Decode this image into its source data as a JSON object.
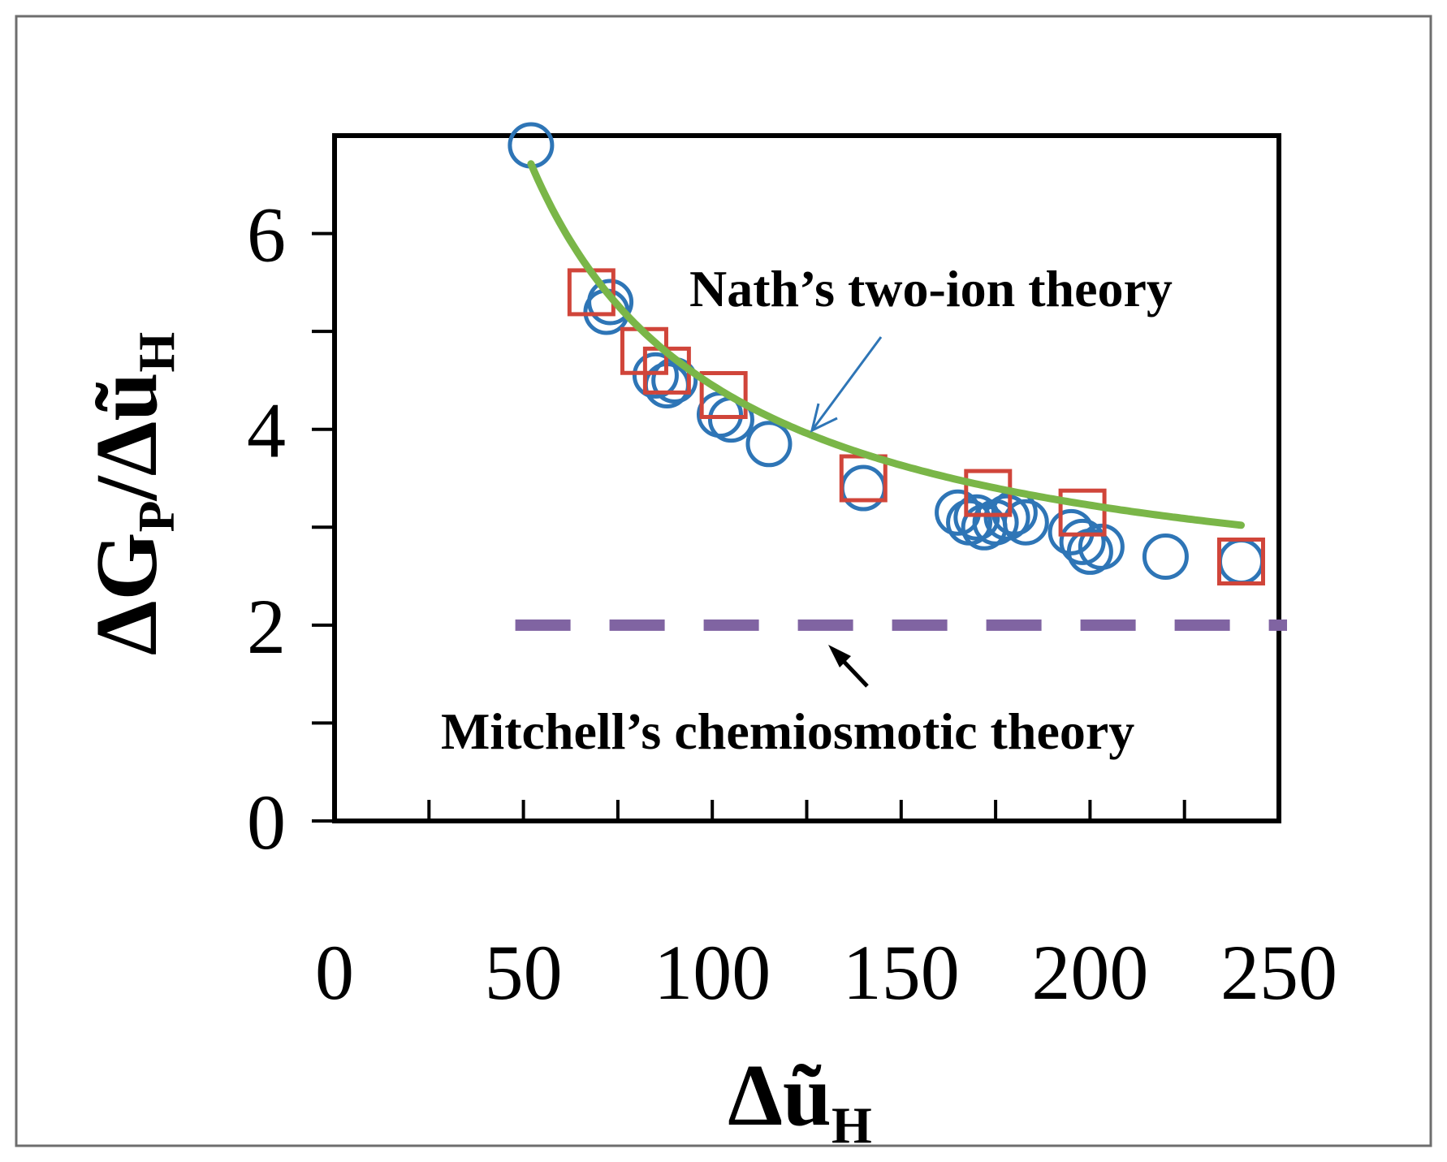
{
  "chart_data": {
    "type": "scatter",
    "xlabel": "Δũ",
    "xlabel_sub": "H",
    "ylabel_parts": [
      "ΔG",
      "P",
      "/Δũ",
      "H"
    ],
    "xlim": [
      0,
      250
    ],
    "ylim": [
      0,
      7
    ],
    "x_ticks": [
      0,
      50,
      100,
      150,
      200,
      250
    ],
    "x_minor_ticks": [
      25,
      75,
      125,
      175,
      225
    ],
    "y_ticks": [
      0,
      1,
      2,
      3,
      4,
      5,
      6
    ],
    "y_tick_labels": [
      {
        "value": 0,
        "label": "0"
      },
      {
        "value": 2,
        "label": "2"
      },
      {
        "value": 4,
        "label": "4"
      },
      {
        "value": 6,
        "label": "6"
      }
    ],
    "series": [
      {
        "name": "circles",
        "marker": "circle",
        "color": "#2E75B6",
        "points": [
          [
            52,
            6.9
          ],
          [
            72,
            5.2
          ],
          [
            73,
            5.3
          ],
          [
            85,
            4.55
          ],
          [
            88,
            4.45
          ],
          [
            90,
            4.5
          ],
          [
            102,
            4.15
          ],
          [
            105,
            4.1
          ],
          [
            115,
            3.85
          ],
          [
            140,
            3.4
          ],
          [
            165,
            3.15
          ],
          [
            168,
            3.05
          ],
          [
            170,
            3.1
          ],
          [
            172,
            3.0
          ],
          [
            175,
            3.05
          ],
          [
            178,
            3.1
          ],
          [
            180,
            3.15
          ],
          [
            183,
            3.05
          ],
          [
            195,
            2.95
          ],
          [
            198,
            2.85
          ],
          [
            200,
            2.75
          ],
          [
            203,
            2.8
          ],
          [
            220,
            2.7
          ],
          [
            240,
            2.65
          ]
        ]
      },
      {
        "name": "squares",
        "marker": "square",
        "color": "#D0453A",
        "points": [
          [
            68,
            5.4
          ],
          [
            82,
            4.8
          ],
          [
            88,
            4.6
          ],
          [
            103,
            4.35
          ],
          [
            140,
            3.5
          ],
          [
            173,
            3.35
          ],
          [
            198,
            3.15
          ],
          [
            240,
            2.65
          ]
        ]
      }
    ],
    "fit_curve": {
      "name": "Nath's two-ion theory",
      "color": "#7AB648",
      "formula": "2 + 245/x",
      "x_range": [
        52,
        240
      ]
    },
    "reference_line": {
      "name": "Mitchell's chemiosmotic theory",
      "color": "#8064A2",
      "y": 2,
      "x_range": [
        50,
        250
      ],
      "style": "dashed"
    },
    "annotations": [
      {
        "text": "Nath’s two-ion theory",
        "arrow_color": "#2E75B6"
      },
      {
        "text": "Mitchell’s chemiosmotic theory",
        "arrow_color": "#000000"
      }
    ]
  }
}
